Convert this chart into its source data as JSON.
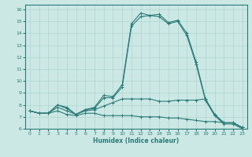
{
  "xlabel": "Humidex (Indice chaleur)",
  "xlim": [
    -0.5,
    23.5
  ],
  "ylim": [
    6,
    16.4
  ],
  "xticks": [
    0,
    1,
    2,
    3,
    4,
    5,
    6,
    7,
    8,
    9,
    10,
    11,
    12,
    13,
    14,
    15,
    16,
    17,
    18,
    19,
    20,
    21,
    22,
    23
  ],
  "yticks": [
    6,
    7,
    8,
    9,
    10,
    11,
    12,
    13,
    14,
    15,
    16
  ],
  "bg_color": "#cce8e5",
  "grid_color": "#afd4d1",
  "line_color": "#2b7b78",
  "lines": [
    {
      "x": [
        0,
        1,
        2,
        3,
        4,
        5,
        6,
        7,
        8,
        9,
        10,
        11,
        12,
        13,
        14,
        15,
        16,
        17,
        18,
        19,
        20,
        21,
        22,
        23
      ],
      "y": [
        7.5,
        7.3,
        7.3,
        8.0,
        7.8,
        7.2,
        7.6,
        7.8,
        8.8,
        8.7,
        9.7,
        14.8,
        15.7,
        15.5,
        15.6,
        14.9,
        15.1,
        14.0,
        11.6,
        8.5,
        7.2,
        6.5,
        6.5,
        6.1
      ]
    },
    {
      "x": [
        0,
        1,
        2,
        3,
        4,
        5,
        6,
        7,
        8,
        9,
        10,
        11,
        12,
        13,
        14,
        15,
        16,
        17,
        18,
        19,
        20,
        21,
        22,
        23
      ],
      "y": [
        7.5,
        7.3,
        7.3,
        8.0,
        7.7,
        7.2,
        7.6,
        7.7,
        8.6,
        8.6,
        9.5,
        14.6,
        15.4,
        15.5,
        15.4,
        14.8,
        15.0,
        13.8,
        11.4,
        8.4,
        7.1,
        6.4,
        6.4,
        6.0
      ]
    },
    {
      "x": [
        0,
        1,
        2,
        3,
        4,
        5,
        6,
        7,
        8,
        9,
        10,
        11,
        12,
        13,
        14,
        15,
        16,
        17,
        18,
        19,
        20,
        21,
        22,
        23
      ],
      "y": [
        7.5,
        7.3,
        7.3,
        7.8,
        7.5,
        7.2,
        7.5,
        7.6,
        7.9,
        8.2,
        8.5,
        8.5,
        8.5,
        8.5,
        8.3,
        8.3,
        8.4,
        8.4,
        8.4,
        8.5,
        7.2,
        6.5,
        6.5,
        6.1
      ]
    },
    {
      "x": [
        0,
        1,
        2,
        3,
        4,
        5,
        6,
        7,
        8,
        9,
        10,
        11,
        12,
        13,
        14,
        15,
        16,
        17,
        18,
        19,
        20,
        21,
        22,
        23
      ],
      "y": [
        7.5,
        7.3,
        7.3,
        7.5,
        7.2,
        7.1,
        7.3,
        7.3,
        7.1,
        7.1,
        7.1,
        7.1,
        7.0,
        7.0,
        7.0,
        6.9,
        6.9,
        6.8,
        6.7,
        6.6,
        6.6,
        6.5,
        6.5,
        6.1
      ]
    }
  ]
}
